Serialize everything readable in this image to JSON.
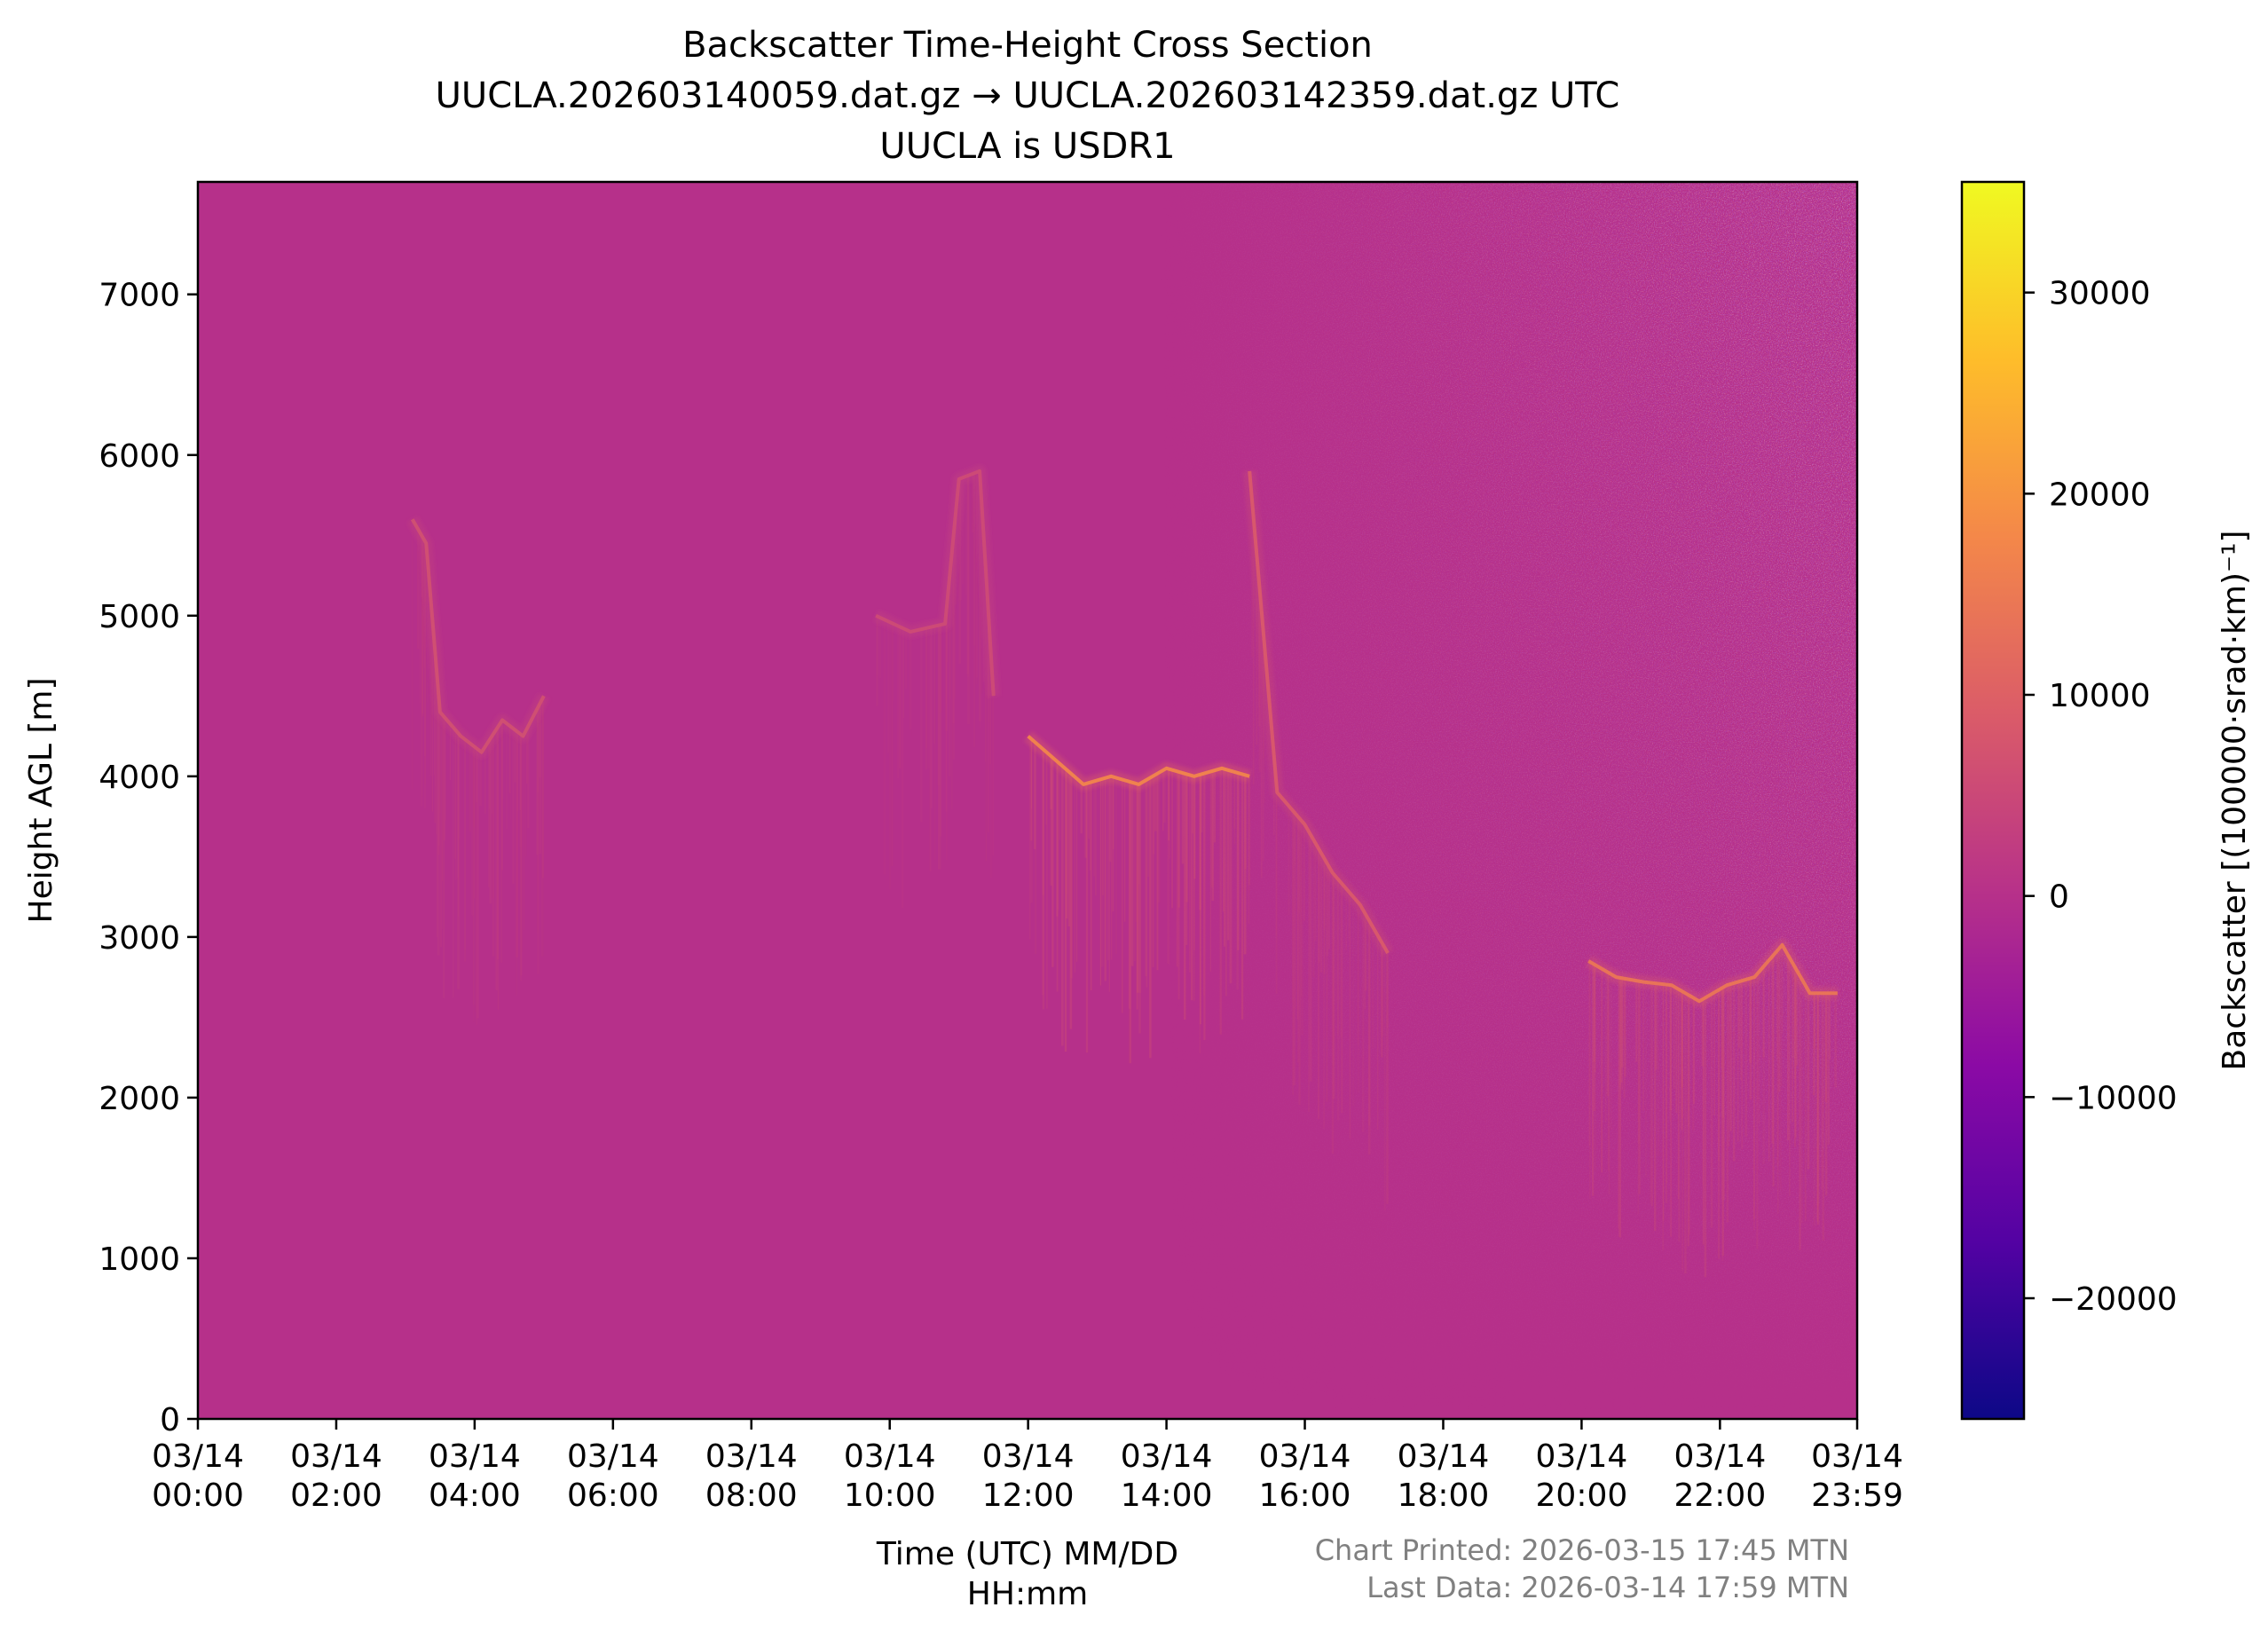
{
  "chart_data": {
    "type": "heatmap",
    "title": [
      "Backscatter Time-Height Cross Section",
      "UUCLA.202603140059.dat.gz → UUCLA.202603142359.dat.gz UTC",
      "UUCLA is USDR1"
    ],
    "xlabel": [
      "Time (UTC) MM/DD",
      "HH:mm"
    ],
    "ylabel": "Height AGL [m]",
    "colorbar_label": "Backscatter [(100000·srad·km)⁻¹]",
    "colormap": "plasma",
    "colormap_stops": [
      "#0d0887",
      "#5302a3",
      "#8b0aa5",
      "#b83289",
      "#db5c68",
      "#f48849",
      "#febd2a",
      "#f0f921"
    ],
    "background_value": 0,
    "xlim_hours": [
      0,
      23.9833
    ],
    "ylim": [
      0,
      7700
    ],
    "clim": [
      -26000,
      35500
    ],
    "x_ticks": [
      {
        "hour": 0,
        "label": [
          "03/14",
          "00:00"
        ]
      },
      {
        "hour": 2,
        "label": [
          "03/14",
          "02:00"
        ]
      },
      {
        "hour": 4,
        "label": [
          "03/14",
          "04:00"
        ]
      },
      {
        "hour": 6,
        "label": [
          "03/14",
          "06:00"
        ]
      },
      {
        "hour": 8,
        "label": [
          "03/14",
          "08:00"
        ]
      },
      {
        "hour": 10,
        "label": [
          "03/14",
          "10:00"
        ]
      },
      {
        "hour": 12,
        "label": [
          "03/14",
          "12:00"
        ]
      },
      {
        "hour": 14,
        "label": [
          "03/14",
          "14:00"
        ]
      },
      {
        "hour": 16,
        "label": [
          "03/14",
          "16:00"
        ]
      },
      {
        "hour": 18,
        "label": [
          "03/14",
          "18:00"
        ]
      },
      {
        "hour": 20,
        "label": [
          "03/14",
          "20:00"
        ]
      },
      {
        "hour": 22,
        "label": [
          "03/14",
          "22:00"
        ]
      },
      {
        "hour": 23.9833,
        "label": [
          "03/14",
          "23:59"
        ]
      }
    ],
    "y_ticks": [
      0,
      1000,
      2000,
      3000,
      4000,
      5000,
      6000,
      7000
    ],
    "colorbar_ticks": [
      -20000,
      -10000,
      0,
      10000,
      20000,
      30000
    ],
    "colorbar_tick_labels": [
      "−20000",
      "−10000",
      "0",
      "10000",
      "20000",
      "30000"
    ],
    "cloud_layers": [
      {
        "name": "layer-upper-early",
        "hours": [
          3.1,
          3.3,
          3.5,
          3.8,
          4.1,
          4.4,
          4.7,
          5.0
        ],
        "heights": [
          5600,
          5450,
          4400,
          4250,
          4150,
          4350,
          4250,
          4500
        ],
        "value": 7000
      },
      {
        "name": "layer-mid-morning",
        "hours": [
          9.8,
          10.3,
          10.8,
          11.0,
          11.3,
          11.5
        ],
        "heights": [
          5000,
          4900,
          4950,
          5850,
          5900,
          4500
        ],
        "value": 6000
      },
      {
        "name": "layer-4000m",
        "hours": [
          12.0,
          12.4,
          12.8,
          13.2,
          13.6,
          14.0,
          14.4,
          14.8,
          15.2
        ],
        "heights": [
          4250,
          4100,
          3950,
          4000,
          3950,
          4050,
          4000,
          4050,
          4000
        ],
        "value": 18000
      },
      {
        "name": "layer-descending",
        "hours": [
          15.2,
          15.6,
          16.0,
          16.4,
          16.8,
          17.2
        ],
        "heights": [
          5900,
          3900,
          3700,
          3400,
          3200,
          2900
        ],
        "value": 9000
      },
      {
        "name": "layer-2700m",
        "hours": [
          20.1,
          20.5,
          20.9,
          21.3,
          21.7,
          22.1,
          22.5,
          22.9,
          23.3,
          23.7
        ],
        "heights": [
          2850,
          2750,
          2720,
          2700,
          2600,
          2700,
          2750,
          2950,
          2650,
          2650
        ],
        "value": 15000
      }
    ]
  },
  "footnote": {
    "printed": "Chart Printed: 2026-03-15 17:45 MTN",
    "last_data": "Last Data: 2026-03-14 17:59 MTN"
  }
}
